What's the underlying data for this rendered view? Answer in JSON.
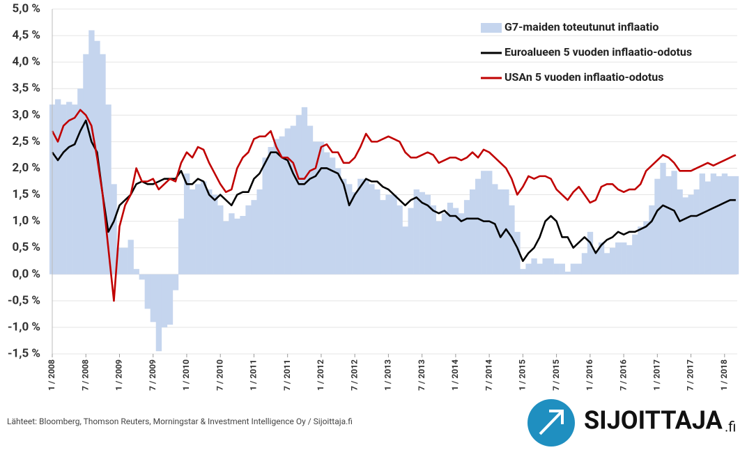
{
  "chart_data": {
    "type": "combo",
    "source": "Lähteet: Bloomberg, Thomson Reuters, Morningstar & Investment Intelligence Oy  / Sijoittaja.fi",
    "categories": [
      "1 / 2008",
      null,
      null,
      null,
      null,
      null,
      "7 / 2008",
      null,
      null,
      null,
      null,
      null,
      "1 / 2009",
      null,
      null,
      null,
      null,
      null,
      "7 / 2009",
      null,
      null,
      null,
      null,
      null,
      "1 / 2010",
      null,
      null,
      null,
      null,
      null,
      "7 / 2010",
      null,
      null,
      null,
      null,
      null,
      "1 / 2011",
      null,
      null,
      null,
      null,
      null,
      "7 / 2011",
      null,
      null,
      null,
      null,
      null,
      "1 / 2012",
      null,
      null,
      null,
      null,
      null,
      "7 / 2012",
      null,
      null,
      null,
      null,
      null,
      "1 / 2013",
      null,
      null,
      null,
      null,
      null,
      "7 / 2013",
      null,
      null,
      null,
      null,
      null,
      "1 / 2014",
      null,
      null,
      null,
      null,
      null,
      "7 / 2014",
      null,
      null,
      null,
      null,
      null,
      "1 / 2015",
      null,
      null,
      null,
      null,
      null,
      "7 / 2015",
      null,
      null,
      null,
      null,
      null,
      "1 / 2016",
      null,
      null,
      null,
      null,
      null,
      "7 / 2016",
      null,
      null,
      null,
      null,
      null,
      "1 / 2017",
      null,
      null,
      null,
      null,
      null,
      "7 / 2017",
      null,
      null,
      null,
      null,
      null,
      "1 / 2018",
      null,
      null
    ],
    "series": [
      {
        "name": "G7-maiden toteutunut inflaatio",
        "type": "bar",
        "color": "#c5d5ee",
        "values": [
          3.2,
          3.3,
          3.2,
          3.25,
          3.2,
          3.5,
          4.15,
          4.6,
          4.4,
          4.15,
          3.2,
          1.7,
          0.5,
          0.5,
          0.65,
          0.1,
          -0.1,
          -0.65,
          -0.9,
          -1.45,
          -1.0,
          -0.95,
          -0.3,
          1.05,
          1.9,
          1.6,
          1.7,
          1.75,
          1.6,
          1.5,
          1.3,
          1.0,
          1.15,
          1.05,
          1.1,
          1.3,
          1.4,
          1.6,
          2.2,
          2.4,
          2.55,
          2.6,
          2.75,
          2.8,
          3.0,
          3.15,
          2.8,
          2.5,
          2.5,
          2.3,
          2.2,
          2.0,
          1.8,
          1.7,
          1.55,
          1.8,
          1.8,
          1.7,
          1.6,
          1.4,
          1.5,
          1.5,
          1.3,
          0.9,
          1.25,
          1.6,
          1.55,
          1.5,
          1.3,
          1.0,
          1.15,
          1.35,
          1.25,
          1.15,
          1.4,
          1.6,
          1.8,
          1.95,
          1.95,
          1.7,
          1.6,
          1.6,
          1.3,
          0.8,
          0.1,
          0.2,
          0.3,
          0.2,
          0.3,
          0.3,
          0.2,
          0.2,
          0.05,
          0.2,
          0.2,
          0.4,
          0.8,
          0.45,
          0.6,
          0.4,
          0.5,
          0.6,
          0.6,
          0.55,
          0.75,
          0.9,
          1.0,
          1.3,
          1.8,
          2.1,
          1.85,
          1.95,
          1.6,
          1.45,
          1.5,
          1.6,
          1.9,
          1.75,
          1.9,
          1.85,
          1.9,
          1.85,
          1.85
        ]
      },
      {
        "name": "Euroalueen 5 vuoden inflaatio-odotus",
        "type": "line",
        "color": "#000000",
        "values": [
          2.3,
          2.15,
          2.3,
          2.4,
          2.45,
          2.7,
          2.9,
          2.5,
          2.3,
          1.5,
          0.8,
          1.0,
          1.3,
          1.4,
          1.5,
          1.7,
          1.75,
          1.7,
          1.7,
          1.75,
          1.8,
          1.8,
          1.8,
          1.95,
          1.7,
          1.7,
          1.8,
          1.75,
          1.5,
          1.4,
          1.5,
          1.4,
          1.3,
          1.5,
          1.55,
          1.55,
          1.8,
          1.9,
          2.1,
          2.3,
          2.3,
          2.2,
          2.15,
          1.9,
          1.7,
          1.7,
          1.8,
          1.85,
          2.0,
          2.0,
          1.95,
          1.9,
          1.7,
          1.3,
          1.5,
          1.65,
          1.8,
          1.75,
          1.75,
          1.65,
          1.6,
          1.5,
          1.4,
          1.3,
          1.4,
          1.45,
          1.35,
          1.3,
          1.2,
          1.15,
          1.2,
          1.1,
          1.1,
          1.0,
          1.05,
          1.05,
          1.05,
          1.0,
          1.0,
          0.95,
          0.7,
          0.85,
          0.7,
          0.5,
          0.25,
          0.4,
          0.5,
          0.7,
          1.0,
          1.1,
          1.0,
          0.7,
          0.7,
          0.5,
          0.6,
          0.7,
          0.6,
          0.4,
          0.55,
          0.65,
          0.7,
          0.8,
          0.75,
          0.8,
          0.8,
          0.85,
          0.9,
          1.0,
          1.2,
          1.3,
          1.25,
          1.2,
          1.0,
          1.05,
          1.1,
          1.1,
          1.15,
          1.2,
          1.25,
          1.3,
          1.35,
          1.4,
          1.4
        ]
      },
      {
        "name": "USAn 5 vuoden inflaatio-odotus",
        "type": "line",
        "color": "#c00000",
        "values": [
          2.7,
          2.5,
          2.8,
          2.9,
          2.95,
          3.1,
          3.0,
          2.8,
          2.2,
          1.5,
          0.5,
          -0.5,
          0.9,
          1.3,
          1.5,
          2.0,
          1.75,
          1.75,
          1.8,
          1.6,
          1.7,
          1.8,
          1.75,
          2.1,
          2.3,
          2.2,
          2.4,
          2.35,
          2.1,
          1.9,
          1.7,
          1.55,
          1.6,
          2.0,
          2.2,
          2.3,
          2.55,
          2.6,
          2.6,
          2.7,
          2.4,
          2.2,
          2.2,
          2.1,
          1.8,
          1.8,
          1.95,
          2.0,
          2.4,
          2.45,
          2.3,
          2.3,
          2.1,
          2.1,
          2.2,
          2.4,
          2.65,
          2.5,
          2.5,
          2.55,
          2.6,
          2.55,
          2.5,
          2.3,
          2.2,
          2.2,
          2.25,
          2.3,
          2.25,
          2.1,
          2.15,
          2.2,
          2.2,
          2.15,
          2.2,
          2.3,
          2.2,
          2.35,
          2.3,
          2.2,
          2.1,
          2.0,
          1.8,
          1.5,
          1.65,
          1.85,
          1.8,
          1.85,
          1.85,
          1.8,
          1.6,
          1.5,
          1.4,
          1.55,
          1.65,
          1.5,
          1.35,
          1.4,
          1.65,
          1.7,
          1.7,
          1.6,
          1.55,
          1.6,
          1.6,
          1.7,
          1.95,
          2.05,
          2.15,
          2.25,
          2.2,
          2.1,
          1.95,
          1.95,
          1.95,
          2.0,
          2.05,
          2.1,
          2.05,
          2.1,
          2.15,
          2.2,
          2.25
        ]
      }
    ],
    "ylim": [
      -1.5,
      5.0
    ],
    "yticks": [
      {
        "value": -1.5,
        "label": "-1,5 %"
      },
      {
        "value": -1.0,
        "label": "-1,0 %"
      },
      {
        "value": -0.5,
        "label": "-0,5 %"
      },
      {
        "value": 0,
        "label": "0,0 %"
      },
      {
        "value": 0.5,
        "label": "0,5 %"
      },
      {
        "value": 1.0,
        "label": "1,0 %"
      },
      {
        "value": 1.5,
        "label": "1,5 %"
      },
      {
        "value": 2.0,
        "label": "2,0 %"
      },
      {
        "value": 2.5,
        "label": "2,5 %"
      },
      {
        "value": 3.0,
        "label": "3,0 %"
      },
      {
        "value": 3.5,
        "label": "3,5 %"
      },
      {
        "value": 4.0,
        "label": "4,0 %"
      },
      {
        "value": 4.5,
        "label": "4,5 %"
      },
      {
        "value": 5.0,
        "label": "5,0 %"
      }
    ],
    "grid": true,
    "legend": "upper right"
  },
  "logo": {
    "name": "SIJOITTAJA",
    "suffix": ".fi"
  }
}
